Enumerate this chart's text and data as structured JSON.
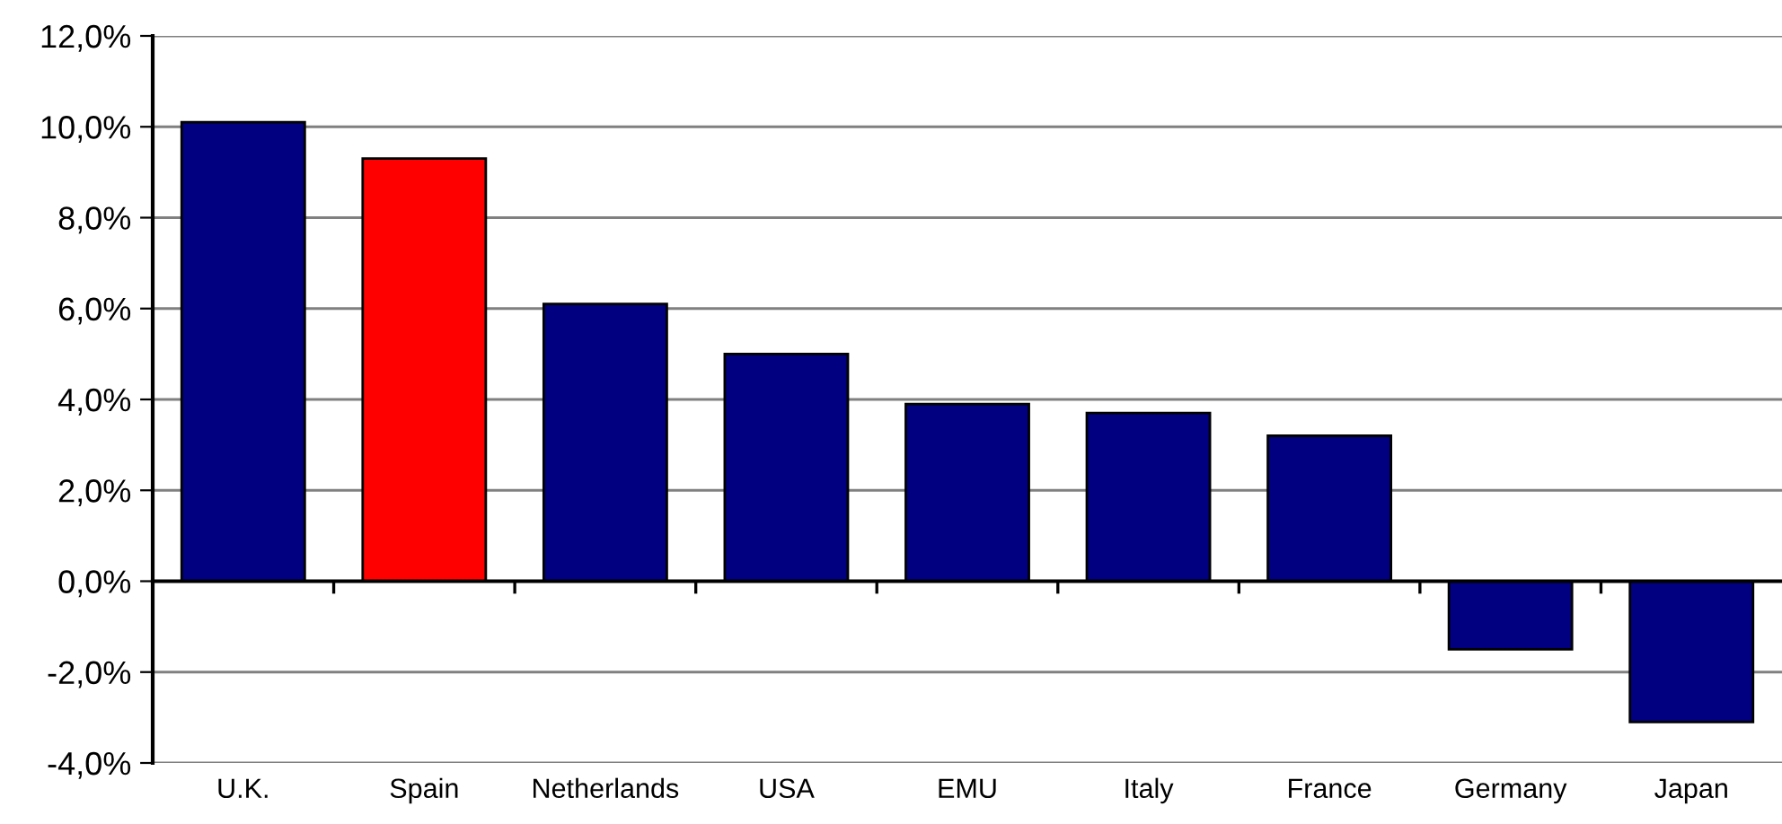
{
  "chart_data": {
    "type": "bar",
    "categories": [
      "U.K.",
      "Spain",
      "Netherlands",
      "USA",
      "EMU",
      "Italy",
      "France",
      "Germany",
      "Japan"
    ],
    "values": [
      10.1,
      9.3,
      6.1,
      5.0,
      3.9,
      3.7,
      3.2,
      -1.5,
      -3.1
    ],
    "colors": [
      "#000080",
      "#ff0000",
      "#000080",
      "#000080",
      "#000080",
      "#000080",
      "#000080",
      "#000080",
      "#000080"
    ],
    "ylim": [
      -4,
      12
    ],
    "yticks": [
      {
        "value": -4,
        "label": "-4,0%"
      },
      {
        "value": -2,
        "label": "-2,0%"
      },
      {
        "value": 0,
        "label": "0,0%"
      },
      {
        "value": 2,
        "label": "2,0%"
      },
      {
        "value": 4,
        "label": "4,0%"
      },
      {
        "value": 6,
        "label": "6,0%"
      },
      {
        "value": 8,
        "label": "8,0%"
      },
      {
        "value": 10,
        "label": "10,0%"
      },
      {
        "value": 12,
        "label": "12,0%"
      }
    ],
    "grid": "y",
    "legend": false
  }
}
